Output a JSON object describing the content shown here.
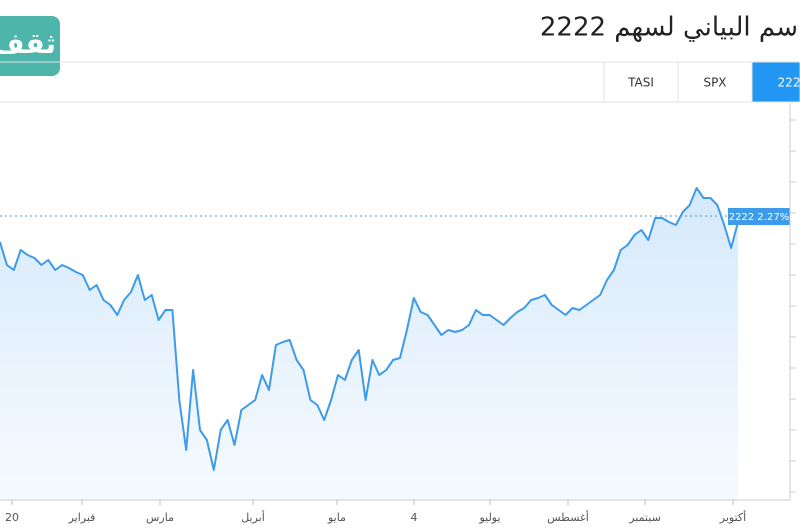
{
  "chart_data": {
    "type": "line",
    "title": "سم البياني لسهم 2222",
    "logo": "ثقف",
    "tabs": [
      "TASI",
      "SPX",
      "222"
    ],
    "price_label": "2222 2.27%",
    "x_axis_labels": [
      "20",
      "فبراير",
      "مارس",
      "أبريل",
      "مايو",
      "4",
      "يوليو",
      "أغسطس",
      "سبتمبر",
      "أكتوبر"
    ],
    "color": "#3d9be9",
    "ylim": [
      0,
      397
    ],
    "values": [
      258,
      235,
      230,
      250,
      245,
      242,
      235,
      240,
      230,
      235,
      232,
      228,
      225,
      210,
      215,
      200,
      195,
      185,
      200,
      208,
      225,
      200,
      205,
      180,
      190,
      190,
      100,
      50,
      130,
      70,
      60,
      30,
      70,
      80,
      55,
      90,
      95,
      100,
      125,
      110,
      155,
      158,
      160,
      140,
      130,
      100,
      95,
      80,
      100,
      125,
      120,
      140,
      150,
      100,
      140,
      125,
      130,
      140,
      142,
      170,
      202,
      188,
      185,
      175,
      165,
      170,
      168,
      170,
      175,
      190,
      185,
      185,
      180,
      175,
      182,
      188,
      192,
      200,
      202,
      205,
      195,
      190,
      185,
      192,
      190,
      195,
      200,
      205,
      220,
      230,
      250,
      255,
      265,
      270,
      260,
      282,
      282,
      278,
      275,
      288,
      295,
      312,
      302,
      302,
      295,
      275,
      252,
      278
    ]
  }
}
